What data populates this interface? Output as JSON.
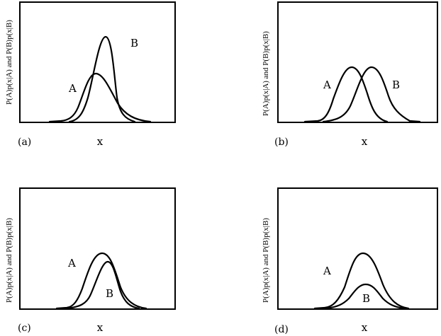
{
  "panels": [
    {
      "tag": "(a)",
      "xlabel": "x",
      "ylabel": "P(A)p(x|A) and P(B)p(x|B)",
      "label_a": "A",
      "label_b": "B"
    },
    {
      "tag": "(b)",
      "xlabel": "x",
      "ylabel": "P(A)p(x|A) and P(B)p(x|B)",
      "label_a": "A",
      "label_b": "B"
    },
    {
      "tag": "(c)",
      "xlabel": "x",
      "ylabel": "P(A)p(x|A) and P(B)p(x|B)",
      "label_a": "A",
      "label_b": "B"
    },
    {
      "tag": "(d)",
      "xlabel": "x",
      "ylabel": "P(A)p(x|A) and P(B)p(x|B)",
      "label_a": "A",
      "label_b": "B"
    }
  ]
}
